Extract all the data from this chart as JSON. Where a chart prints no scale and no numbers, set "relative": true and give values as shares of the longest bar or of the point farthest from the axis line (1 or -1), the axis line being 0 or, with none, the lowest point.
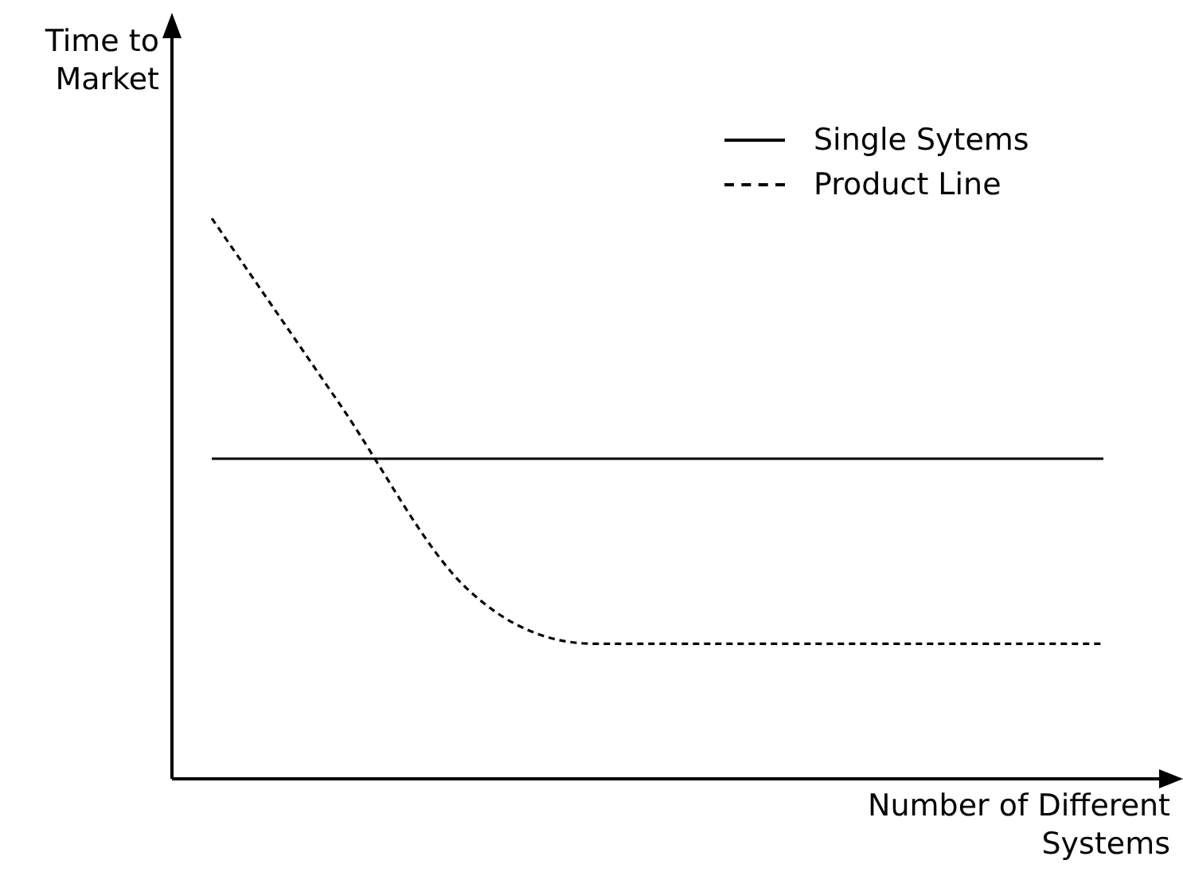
{
  "chart_data": {
    "type": "line",
    "relative": true,
    "xlabel": "Number of Different Systems",
    "ylabel": "Time to Market",
    "legend": "top right",
    "marker": "none",
    "categories": [
      null,
      null,
      null,
      null,
      null,
      null,
      null,
      null
    ],
    "series": [
      {
        "name": "Single Sytems",
        "color": "#000000",
        "line_style": "solid",
        "values": [
          0.571,
          0.571,
          0.571,
          0.571,
          0.571,
          0.571,
          0.571,
          0.571
        ]
      },
      {
        "name": "Product Line",
        "color": "#000000",
        "line_style": "dashed",
        "values": [
          1,
          0.67,
          0.34,
          0.241,
          0.241,
          0.241,
          0.241,
          0.241
        ]
      }
    ]
  }
}
